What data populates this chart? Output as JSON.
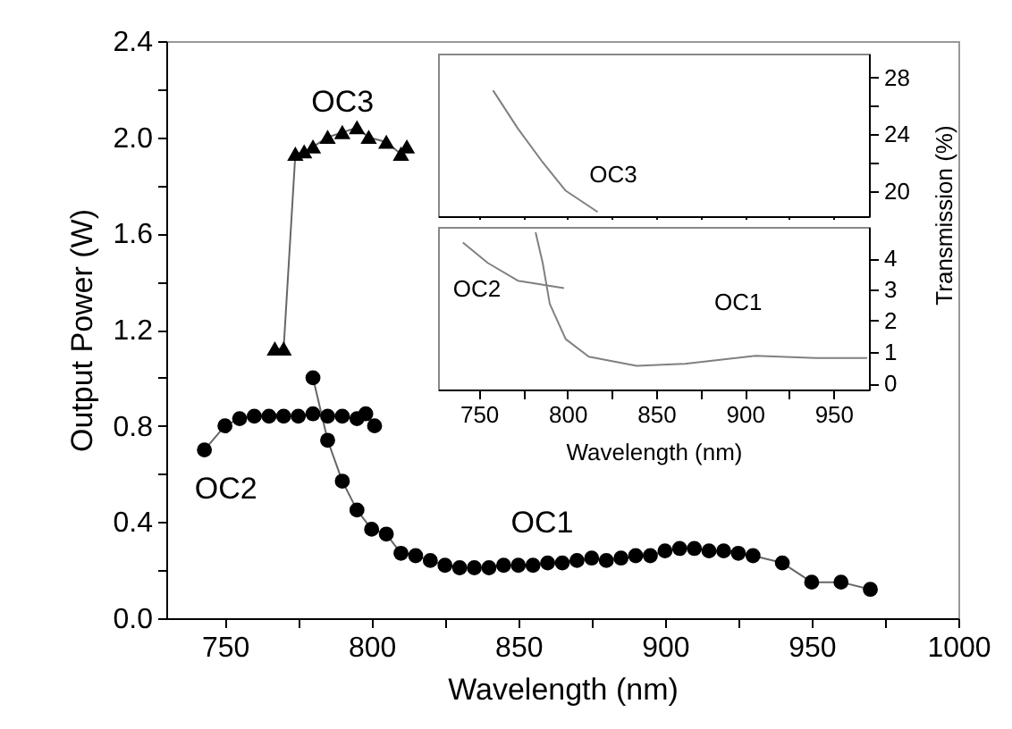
{
  "chart_data": [
    {
      "type": "line",
      "xlabel": "Wavelength (nm)",
      "ylabel": "Output Power (W)",
      "xlim": [
        730,
        1000
      ],
      "ylim": [
        0,
        2.4
      ],
      "xticks": [
        750,
        {
          "value": 775,
          "label": null
        },
        800,
        {
          "value": 825,
          "label": null
        },
        850,
        {
          "value": 875,
          "label": null
        },
        900,
        {
          "value": 925,
          "label": null
        },
        950,
        {
          "value": 975,
          "label": null
        },
        1000
      ],
      "yticks": [
        {
          "value": 0,
          "label": "0.0"
        },
        {
          "value": 0.2,
          "label": null
        },
        0.4,
        {
          "value": 0.6,
          "label": null
        },
        0.8,
        {
          "value": 1,
          "label": null
        },
        1.2,
        {
          "value": 1.4,
          "label": null
        },
        1.6,
        {
          "value": 1.8,
          "label": null
        },
        {
          "value": 2,
          "label": "2.0"
        },
        {
          "value": 2.2,
          "label": null
        },
        2.4
      ],
      "series": [
        {
          "name": "OC3",
          "color": "#000000",
          "marker": "triangle",
          "x": [
            767,
            770,
            774,
            777,
            780,
            785,
            790,
            795,
            799,
            805,
            810,
            812
          ],
          "values": [
            1.12,
            1.12,
            1.93,
            1.94,
            1.96,
            2.0,
            2.02,
            2.04,
            2.0,
            1.98,
            1.93,
            1.96
          ]
        },
        {
          "name": "OC2",
          "color": "#000000",
          "marker": "circle",
          "x": [
            743,
            750,
            755,
            760,
            765,
            770,
            775,
            780,
            785,
            790,
            795,
            798,
            801
          ],
          "values": [
            0.7,
            0.8,
            0.83,
            0.84,
            0.84,
            0.84,
            0.84,
            0.85,
            0.84,
            0.84,
            0.83,
            0.85,
            0.8
          ]
        },
        {
          "name": "OC1",
          "color": "#000000",
          "marker": "circle",
          "x": [
            780,
            785,
            790,
            795,
            800,
            805,
            810,
            815,
            820,
            825,
            830,
            835,
            840,
            845,
            850,
            855,
            860,
            865,
            870,
            875,
            880,
            885,
            890,
            895,
            900,
            905,
            910,
            915,
            920,
            925,
            930,
            940,
            950,
            960,
            970
          ],
          "values": [
            1.0,
            0.74,
            0.57,
            0.45,
            0.37,
            0.35,
            0.27,
            0.26,
            0.24,
            0.22,
            0.21,
            0.21,
            0.21,
            0.22,
            0.22,
            0.22,
            0.23,
            0.23,
            0.24,
            0.25,
            0.24,
            0.25,
            0.26,
            0.26,
            0.28,
            0.29,
            0.29,
            0.28,
            0.28,
            0.27,
            0.26,
            0.23,
            0.15,
            0.15,
            0.12
          ]
        }
      ]
    },
    {
      "type": "line",
      "tick_labels": "y",
      "xlim": [
        727,
        970
      ],
      "y2lim": [
        18.2,
        29.7
      ],
      "xticks": [
        750,
        {
          "value": 775,
          "label": null
        },
        800,
        {
          "value": 825,
          "label": null
        },
        850,
        {
          "value": 875,
          "label": null
        },
        900,
        {
          "value": 925,
          "label": null
        },
        950
      ],
      "y2ticks": [
        20,
        {
          "value": 22,
          "label": null
        },
        24,
        {
          "value": 26,
          "label": null
        },
        28
      ],
      "series": [
        {
          "name": "OC3",
          "color": "#808080",
          "axis": "y2",
          "x": [
            758,
            772,
            785.5,
            799,
            817
          ],
          "values": [
            27.1,
            24.4,
            22.1,
            20.0,
            18.5
          ]
        }
      ]
    },
    {
      "type": "line",
      "xlabel": "Wavelength (nm)",
      "y2label": "Transmission (%)",
      "xlim": [
        727,
        970
      ],
      "y2lim": [
        -0.2,
        5.0
      ],
      "xticks": [
        750,
        {
          "value": 775,
          "label": null
        },
        800,
        {
          "value": 825,
          "label": null
        },
        850,
        {
          "value": 875,
          "label": null
        },
        900,
        {
          "value": 925,
          "label": null
        },
        950
      ],
      "y2ticks": [
        0,
        1,
        2,
        3,
        4
      ],
      "series": [
        {
          "name": "OC2",
          "color": "#808080",
          "axis": "y2",
          "x": [
            741,
            755,
            772,
            798
          ],
          "values": [
            4.5,
            3.85,
            3.28,
            3.04
          ]
        },
        {
          "name": "OC1",
          "color": "#808080",
          "axis": "y2",
          "x": [
            782,
            786,
            790,
            799,
            812,
            839,
            866,
            906,
            940,
            969
          ],
          "values": [
            4.83,
            3.85,
            2.54,
            1.41,
            0.85,
            0.56,
            0.62,
            0.88,
            0.81,
            0.81
          ]
        }
      ]
    }
  ]
}
